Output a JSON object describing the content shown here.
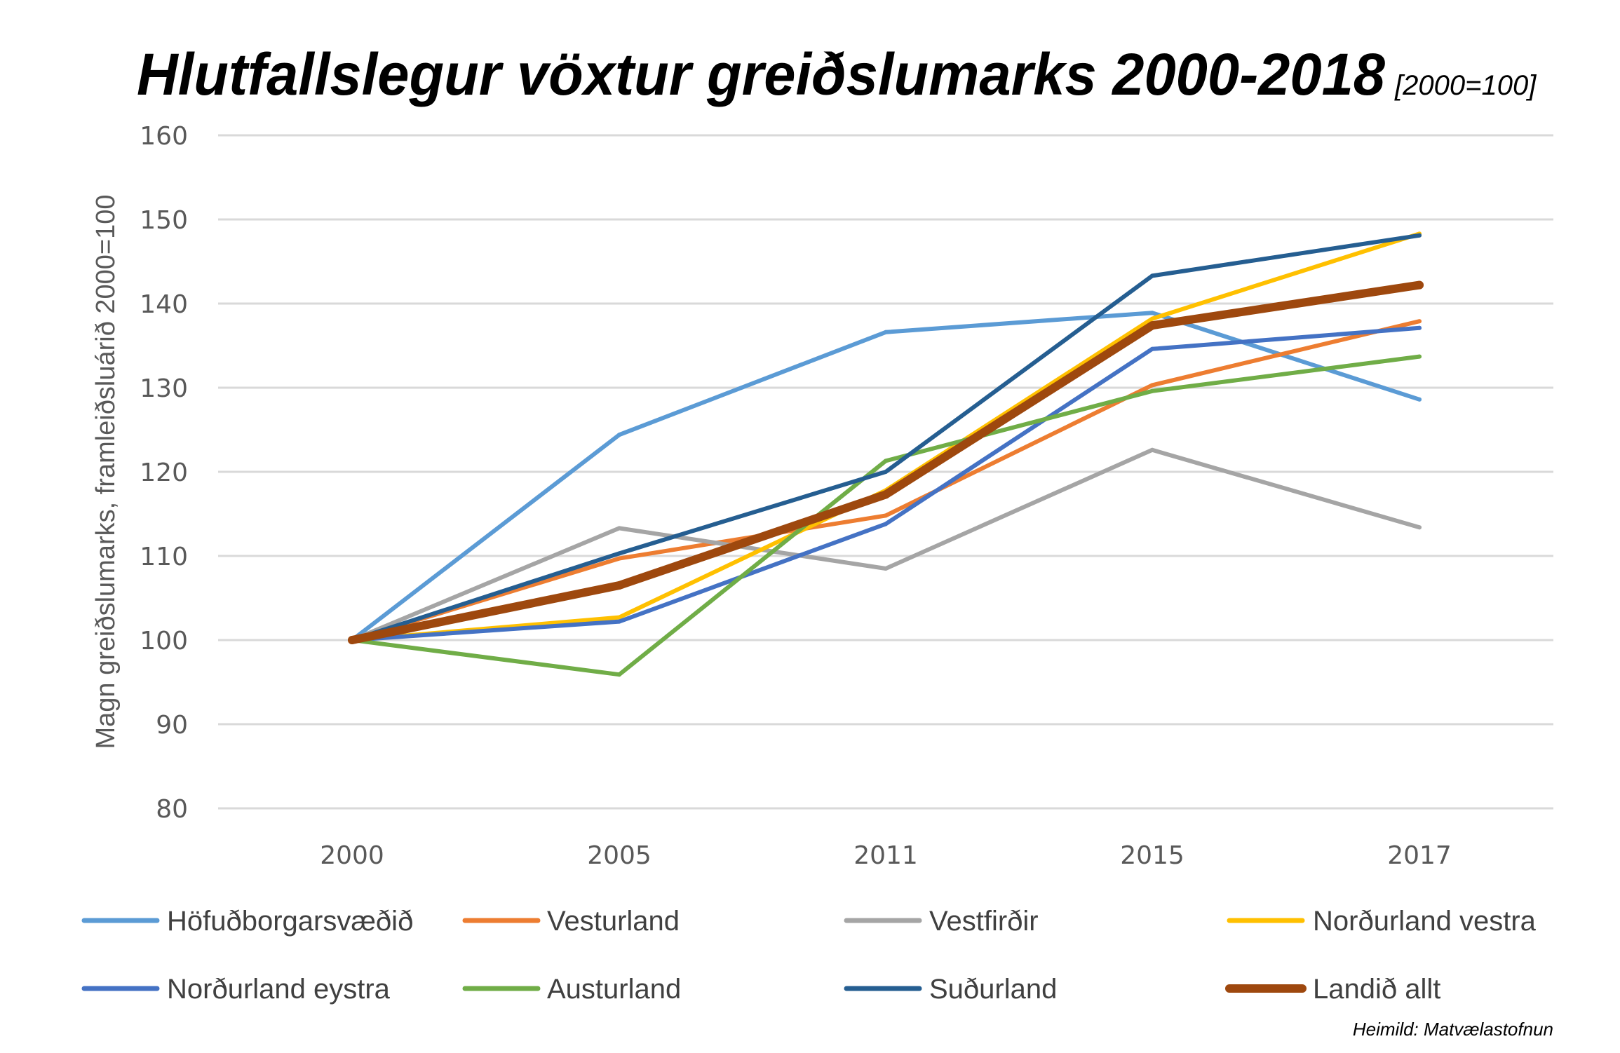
{
  "chart_data": {
    "type": "line",
    "title": "Hlutfallslegur vöxtur greiðslumarks 2000-2018",
    "subtitle": "[2000=100]",
    "xlabel": "",
    "ylabel": "Magn greiðslumarks, framleiðsluárið 2000=100",
    "categories": [
      "2000",
      "2005",
      "2011",
      "2015",
      "2017"
    ],
    "ylim": [
      80,
      160
    ],
    "yticks": [
      80,
      90,
      100,
      110,
      120,
      130,
      140,
      150,
      160
    ],
    "ytick_labels": [
      "80",
      "90",
      "100",
      "110",
      "120",
      "130",
      "140",
      "150",
      "160"
    ],
    "grid": true,
    "legend_position": "bottom",
    "series": [
      {
        "name": "Höfuðborgarsvæðið",
        "color": "#5B9BD5",
        "width": "normal",
        "values": [
          100,
          124.4,
          136.6,
          138.9,
          128.6
        ]
      },
      {
        "name": "Vesturland",
        "color": "#ED7D31",
        "width": "normal",
        "values": [
          100,
          109.7,
          114.8,
          130.3,
          137.9
        ]
      },
      {
        "name": "Vestfirðir",
        "color": "#A5A5A5",
        "width": "normal",
        "values": [
          100,
          113.3,
          108.5,
          122.6,
          113.4
        ]
      },
      {
        "name": "Norðurland vestra",
        "color": "#FFC000",
        "width": "normal",
        "values": [
          100,
          102.7,
          117.8,
          138.2,
          148.3
        ]
      },
      {
        "name": "Norðurland eystra",
        "color": "#4472C4",
        "width": "normal",
        "values": [
          100,
          102.2,
          113.8,
          134.6,
          137.1
        ]
      },
      {
        "name": "Austurland",
        "color": "#70AD47",
        "width": "normal",
        "values": [
          100,
          95.9,
          121.3,
          129.6,
          133.7
        ]
      },
      {
        "name": "Suðurland",
        "color": "#255E91",
        "width": "normal",
        "values": [
          100,
          110.3,
          120.0,
          143.3,
          148.1
        ]
      },
      {
        "name": "Landið allt",
        "color": "#9E480E",
        "width": "thick",
        "values": [
          100,
          106.5,
          117.3,
          137.4,
          142.2
        ]
      }
    ],
    "source": "Heimild: Matvælastofnun"
  },
  "colors": {
    "grid": "#D9D9D9",
    "tick_text": "#595959",
    "legend_text": "#404040"
  }
}
